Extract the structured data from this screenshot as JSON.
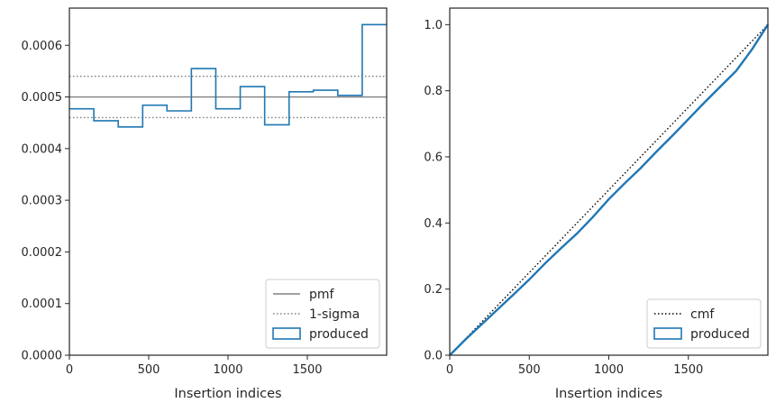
{
  "chart_data": [
    {
      "type": "histogram-step",
      "xlabel": "Insertion indices",
      "ylabel": "",
      "xlim": [
        0,
        2000
      ],
      "ylim": [
        0,
        0.000672
      ],
      "xticks": [
        0,
        500,
        1000,
        1500
      ],
      "xtick_labels": [
        "0",
        "500",
        "1000",
        "1500"
      ],
      "yticks": [
        0,
        0.0001,
        0.0002,
        0.0003,
        0.0004,
        0.0005,
        0.0006
      ],
      "ytick_labels": [
        "0.0000",
        "0.0001",
        "0.0002",
        "0.0003",
        "0.0004",
        "0.0005",
        "0.0006"
      ],
      "pmf": 0.0005,
      "sigma_band": [
        0.00046,
        0.00054
      ],
      "bin_edges": [
        0,
        154,
        308,
        462,
        615,
        769,
        923,
        1077,
        1231,
        1385,
        1538,
        1692,
        1846,
        2000
      ],
      "values": [
        0.000477,
        0.000454,
        0.000442,
        0.000484,
        0.000473,
        0.000555,
        0.000477,
        0.00052,
        0.000446,
        0.00051,
        0.000513,
        0.000503,
        0.00064
      ],
      "legend": {
        "placement": "lower-right",
        "entries": [
          {
            "label": "pmf",
            "style": "solid-line",
            "color": "#808080"
          },
          {
            "label": "1-sigma",
            "style": "dotted-line",
            "color": "#808080"
          },
          {
            "label": "produced",
            "style": "box",
            "color": "#1f77b4"
          }
        ]
      }
    },
    {
      "type": "line",
      "xlabel": "Insertion indices",
      "ylabel": "",
      "xlim": [
        0,
        2000
      ],
      "ylim": [
        0,
        1.05
      ],
      "xticks": [
        0,
        500,
        1000,
        1500
      ],
      "xtick_labels": [
        "0",
        "500",
        "1000",
        "1500"
      ],
      "yticks": [
        0,
        0.2,
        0.4,
        0.6,
        0.8,
        1.0
      ],
      "ytick_labels": [
        "0.0",
        "0.2",
        "0.4",
        "0.6",
        "0.8",
        "1.0"
      ],
      "series": [
        {
          "name": "cmf",
          "style": "dotted",
          "color": "#000000",
          "x": [
            0,
            2000
          ],
          "y": [
            0,
            1.0
          ]
        },
        {
          "name": "produced",
          "style": "step",
          "color": "#1f77b4",
          "x": [
            0,
            100,
            200,
            300,
            400,
            500,
            600,
            700,
            800,
            900,
            1000,
            1100,
            1200,
            1300,
            1400,
            1500,
            1600,
            1700,
            1800,
            1900,
            2000
          ],
          "y": [
            0,
            0.048,
            0.093,
            0.138,
            0.183,
            0.229,
            0.278,
            0.324,
            0.368,
            0.418,
            0.472,
            0.52,
            0.566,
            0.616,
            0.664,
            0.714,
            0.764,
            0.812,
            0.86,
            0.925,
            1.0
          ]
        }
      ],
      "legend": {
        "placement": "lower-right",
        "entries": [
          {
            "label": "cmf",
            "style": "dotted-line",
            "color": "#000000"
          },
          {
            "label": "produced",
            "style": "box",
            "color": "#1f77b4"
          }
        ]
      }
    }
  ]
}
